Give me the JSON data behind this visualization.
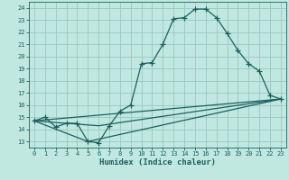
{
  "bg_color": "#c0e8e0",
  "grid_color": "#98c8c0",
  "line_color": "#1a6060",
  "xlabel": "Humidex (Indice chaleur)",
  "xlim": [
    -0.5,
    23.5
  ],
  "ylim": [
    12.5,
    24.5
  ],
  "yticks": [
    13,
    14,
    15,
    16,
    17,
    18,
    19,
    20,
    21,
    22,
    23,
    24
  ],
  "xticks": [
    0,
    1,
    2,
    3,
    4,
    5,
    6,
    7,
    8,
    9,
    10,
    11,
    12,
    13,
    14,
    15,
    16,
    17,
    18,
    19,
    20,
    21,
    22,
    23
  ],
  "line1_x": [
    0,
    1,
    2,
    3,
    4,
    5,
    6,
    7,
    8,
    9,
    10,
    11,
    12,
    13,
    14,
    15,
    16,
    17,
    18,
    19,
    20,
    21,
    22,
    23
  ],
  "line1_y": [
    14.7,
    15.0,
    14.2,
    14.5,
    14.5,
    13.0,
    12.9,
    14.3,
    15.5,
    16.0,
    19.4,
    19.5,
    21.0,
    23.1,
    23.2,
    23.9,
    23.9,
    23.2,
    21.9,
    20.5,
    19.4,
    18.8,
    16.8,
    16.5
  ],
  "line2_x": [
    0,
    5,
    23
  ],
  "line2_y": [
    14.7,
    13.0,
    16.5
  ],
  "line3_x": [
    0,
    6,
    23
  ],
  "line3_y": [
    14.7,
    14.3,
    16.5
  ],
  "line4_x": [
    0,
    23
  ],
  "line4_y": [
    14.7,
    16.5
  ]
}
